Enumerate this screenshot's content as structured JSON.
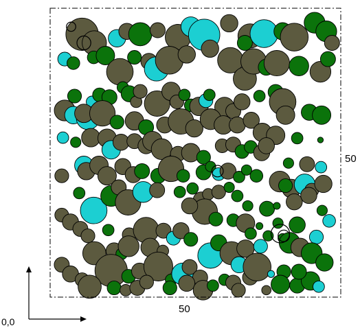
{
  "labels": {
    "width": "50",
    "height": "50",
    "origin": "0,0"
  },
  "colors": {
    "brown": "#5c5a3f",
    "cyan": "#1ccfd2",
    "green": "#0b730b",
    "outline": "#000000",
    "frame": "#000000"
  },
  "domain": {
    "width": 50,
    "height": 50
  },
  "circles": [
    {
      "x": 5.5,
      "y": 45.5,
      "r": 2.8,
      "c": "brown"
    },
    {
      "x": 7.6,
      "y": 44.0,
      "r": 2.1,
      "c": "brown"
    },
    {
      "x": 11.5,
      "y": 44.8,
      "r": 1.5,
      "c": "cyan"
    },
    {
      "x": 13.2,
      "y": 46.0,
      "r": 1.4,
      "c": "brown"
    },
    {
      "x": 15.5,
      "y": 45.5,
      "r": 2.0,
      "c": "green"
    },
    {
      "x": 18.5,
      "y": 46.2,
      "r": 1.3,
      "c": "brown"
    },
    {
      "x": 22.0,
      "y": 45.0,
      "r": 2.2,
      "c": "brown"
    },
    {
      "x": 24.2,
      "y": 46.8,
      "r": 1.7,
      "c": "cyan"
    },
    {
      "x": 26.5,
      "y": 45.4,
      "r": 2.7,
      "c": "cyan"
    },
    {
      "x": 30.8,
      "y": 47.4,
      "r": 1.5,
      "c": "brown"
    },
    {
      "x": 34.4,
      "y": 45.2,
      "r": 2.1,
      "c": "brown"
    },
    {
      "x": 33.5,
      "y": 44.0,
      "r": 1.3,
      "c": "green"
    },
    {
      "x": 36.8,
      "y": 45.6,
      "r": 2.4,
      "c": "cyan"
    },
    {
      "x": 40.0,
      "y": 46.0,
      "r": 1.5,
      "c": "green"
    },
    {
      "x": 42.0,
      "y": 45.0,
      "r": 2.4,
      "c": "brown"
    },
    {
      "x": 45.5,
      "y": 47.5,
      "r": 1.8,
      "c": "green"
    },
    {
      "x": 47.5,
      "y": 46.0,
      "r": 1.8,
      "c": "green"
    },
    {
      "x": 48.5,
      "y": 44.0,
      "r": 1.3,
      "c": "brown"
    },
    {
      "x": 2.5,
      "y": 41.2,
      "r": 1.2,
      "c": "cyan"
    },
    {
      "x": 4.0,
      "y": 40.5,
      "r": 1.1,
      "c": "green"
    },
    {
      "x": 7.5,
      "y": 41.5,
      "r": 1.1,
      "c": "green"
    },
    {
      "x": 9.5,
      "y": 41.8,
      "r": 1.6,
      "c": "green"
    },
    {
      "x": 12.0,
      "y": 39.0,
      "r": 2.3,
      "c": "brown"
    },
    {
      "x": 14.5,
      "y": 41.5,
      "r": 1.2,
      "c": "green"
    },
    {
      "x": 17.0,
      "y": 40.8,
      "r": 1.4,
      "c": "brown"
    },
    {
      "x": 18.3,
      "y": 39.5,
      "r": 2.1,
      "c": "cyan"
    },
    {
      "x": 20.5,
      "y": 41.0,
      "r": 2.4,
      "c": "brown"
    },
    {
      "x": 23.5,
      "y": 42.0,
      "r": 1.5,
      "c": "brown"
    },
    {
      "x": 27.5,
      "y": 43.0,
      "r": 1.5,
      "c": "brown"
    },
    {
      "x": 31.0,
      "y": 41.0,
      "r": 2.2,
      "c": "brown"
    },
    {
      "x": 33.5,
      "y": 37.8,
      "r": 2.0,
      "c": "brown"
    },
    {
      "x": 35.0,
      "y": 40.8,
      "r": 2.2,
      "c": "brown"
    },
    {
      "x": 37.2,
      "y": 39.8,
      "r": 1.4,
      "c": "green"
    },
    {
      "x": 39.0,
      "y": 40.5,
      "r": 2.2,
      "c": "brown"
    },
    {
      "x": 42.8,
      "y": 40.0,
      "r": 1.7,
      "c": "green"
    },
    {
      "x": 46.5,
      "y": 39.0,
      "r": 1.8,
      "c": "brown"
    },
    {
      "x": 47.8,
      "y": 41.2,
      "r": 1.3,
      "c": "green"
    },
    {
      "x": 4.2,
      "y": 34.8,
      "r": 1.2,
      "c": "green"
    },
    {
      "x": 7.2,
      "y": 33.8,
      "r": 1.0,
      "c": "cyan"
    },
    {
      "x": 8.5,
      "y": 35.0,
      "r": 1.2,
      "c": "green"
    },
    {
      "x": 10.2,
      "y": 34.6,
      "r": 1.3,
      "c": "green"
    },
    {
      "x": 12.5,
      "y": 36.3,
      "r": 1.0,
      "c": "green"
    },
    {
      "x": 13.6,
      "y": 35.2,
      "r": 1.4,
      "c": "green"
    },
    {
      "x": 14.8,
      "y": 33.8,
      "r": 1.0,
      "c": "brown"
    },
    {
      "x": 15.5,
      "y": 35.6,
      "r": 1.2,
      "c": "brown"
    },
    {
      "x": 18.4,
      "y": 33.5,
      "r": 2.2,
      "c": "brown"
    },
    {
      "x": 20.8,
      "y": 35.6,
      "r": 1.6,
      "c": "brown"
    },
    {
      "x": 21.8,
      "y": 33.8,
      "r": 1.2,
      "c": "brown"
    },
    {
      "x": 23.1,
      "y": 35.0,
      "r": 1.0,
      "c": "green"
    },
    {
      "x": 24.2,
      "y": 33.2,
      "r": 1.1,
      "c": "green"
    },
    {
      "x": 25.6,
      "y": 33.0,
      "r": 1.6,
      "c": "brown"
    },
    {
      "x": 26.8,
      "y": 34.0,
      "r": 1.2,
      "c": "cyan"
    },
    {
      "x": 27.4,
      "y": 35.0,
      "r": 1.0,
      "c": "green"
    },
    {
      "x": 30.0,
      "y": 32.9,
      "r": 1.7,
      "c": "brown"
    },
    {
      "x": 31.5,
      "y": 32.2,
      "r": 1.3,
      "c": "brown"
    },
    {
      "x": 33.0,
      "y": 33.8,
      "r": 1.4,
      "c": "brown"
    },
    {
      "x": 36.0,
      "y": 34.8,
      "r": 1.0,
      "c": "green"
    },
    {
      "x": 38.8,
      "y": 35.5,
      "r": 1.3,
      "c": "green"
    },
    {
      "x": 40.0,
      "y": 33.8,
      "r": 2.3,
      "c": "brown"
    },
    {
      "x": 40.5,
      "y": 31.5,
      "r": 1.6,
      "c": "brown"
    },
    {
      "x": 44.6,
      "y": 32.0,
      "r": 1.4,
      "c": "green"
    },
    {
      "x": 46.7,
      "y": 31.5,
      "r": 1.6,
      "c": "green"
    },
    {
      "x": 2.5,
      "y": 32.3,
      "r": 1.8,
      "c": "brown"
    },
    {
      "x": 4.0,
      "y": 31.5,
      "r": 1.5,
      "c": "cyan"
    },
    {
      "x": 6.5,
      "y": 31.0,
      "r": 2.0,
      "c": "cyan"
    },
    {
      "x": 5.8,
      "y": 31.8,
      "r": 1.6,
      "c": "brown"
    },
    {
      "x": 9.0,
      "y": 31.8,
      "r": 2.2,
      "c": "brown"
    },
    {
      "x": 11.5,
      "y": 30.3,
      "r": 1.2,
      "c": "green"
    },
    {
      "x": 14.5,
      "y": 30.5,
      "r": 1.6,
      "c": "brown"
    },
    {
      "x": 16.5,
      "y": 29.4,
      "r": 1.3,
      "c": "green"
    },
    {
      "x": 19.7,
      "y": 29.8,
      "r": 1.4,
      "c": "brown"
    },
    {
      "x": 22.5,
      "y": 30.4,
      "r": 2.2,
      "c": "brown"
    },
    {
      "x": 24.8,
      "y": 29.2,
      "r": 1.5,
      "c": "brown"
    },
    {
      "x": 27.6,
      "y": 30.8,
      "r": 1.8,
      "c": "brown"
    },
    {
      "x": 29.8,
      "y": 29.8,
      "r": 1.6,
      "c": "brown"
    },
    {
      "x": 32.2,
      "y": 29.8,
      "r": 1.4,
      "c": "brown"
    },
    {
      "x": 34.6,
      "y": 30.6,
      "r": 1.4,
      "c": "brown"
    },
    {
      "x": 36.5,
      "y": 28.5,
      "r": 1.6,
      "c": "brown"
    },
    {
      "x": 38.8,
      "y": 28.0,
      "r": 1.6,
      "c": "brown"
    },
    {
      "x": 42.5,
      "y": 27.5,
      "r": 1.0,
      "c": "green"
    },
    {
      "x": 46.5,
      "y": 27.2,
      "r": 0.5,
      "c": "green"
    },
    {
      "x": 2.2,
      "y": 27.6,
      "r": 1.0,
      "c": "cyan"
    },
    {
      "x": 4.4,
      "y": 26.8,
      "r": 0.9,
      "c": "green"
    },
    {
      "x": 7.0,
      "y": 27.6,
      "r": 1.6,
      "c": "brown"
    },
    {
      "x": 9.8,
      "y": 27.5,
      "r": 1.6,
      "c": "brown"
    },
    {
      "x": 10.5,
      "y": 25.5,
      "r": 1.6,
      "c": "cyan"
    },
    {
      "x": 12.2,
      "y": 26.8,
      "r": 1.4,
      "c": "brown"
    },
    {
      "x": 14.5,
      "y": 27.0,
      "r": 1.3,
      "c": "brown"
    },
    {
      "x": 16.5,
      "y": 26.2,
      "r": 1.4,
      "c": "brown"
    },
    {
      "x": 17.6,
      "y": 27.0,
      "r": 1.7,
      "c": "brown"
    },
    {
      "x": 19.2,
      "y": 25.6,
      "r": 1.8,
      "c": "brown"
    },
    {
      "x": 22.0,
      "y": 24.8,
      "r": 1.3,
      "c": "brown"
    },
    {
      "x": 24.2,
      "y": 25.0,
      "r": 1.6,
      "c": "brown"
    },
    {
      "x": 26.4,
      "y": 24.2,
      "r": 1.2,
      "c": "green"
    },
    {
      "x": 29.6,
      "y": 26.2,
      "r": 1.2,
      "c": "brown"
    },
    {
      "x": 31.5,
      "y": 26.4,
      "r": 1.3,
      "c": "brown"
    },
    {
      "x": 33.0,
      "y": 25.2,
      "r": 1.2,
      "c": "green"
    },
    {
      "x": 34.5,
      "y": 26.0,
      "r": 1.1,
      "c": "green"
    },
    {
      "x": 36.4,
      "y": 25.0,
      "r": 1.4,
      "c": "brown"
    },
    {
      "x": 37.2,
      "y": 26.2,
      "r": 1.4,
      "c": "brown"
    },
    {
      "x": 41.0,
      "y": 23.2,
      "r": 0.9,
      "c": "green"
    },
    {
      "x": 44.2,
      "y": 23.0,
      "r": 1.3,
      "c": "brown"
    },
    {
      "x": 46.6,
      "y": 22.5,
      "r": 1.0,
      "c": "cyan"
    },
    {
      "x": 2.0,
      "y": 21.0,
      "r": 1.2,
      "c": "brown"
    },
    {
      "x": 5.8,
      "y": 22.8,
      "r": 1.6,
      "c": "cyan"
    },
    {
      "x": 6.2,
      "y": 21.8,
      "r": 1.5,
      "c": "brown"
    },
    {
      "x": 8.4,
      "y": 22.8,
      "r": 1.6,
      "c": "brown"
    },
    {
      "x": 9.8,
      "y": 21.0,
      "r": 1.6,
      "c": "brown"
    },
    {
      "x": 12.5,
      "y": 22.6,
      "r": 1.4,
      "c": "brown"
    },
    {
      "x": 14.3,
      "y": 21.2,
      "r": 1.4,
      "c": "brown"
    },
    {
      "x": 15.8,
      "y": 21.8,
      "r": 1.3,
      "c": "green"
    },
    {
      "x": 18.6,
      "y": 21.0,
      "r": 1.3,
      "c": "green"
    },
    {
      "x": 20.8,
      "y": 22.2,
      "r": 2.2,
      "c": "brown"
    },
    {
      "x": 22.9,
      "y": 21.0,
      "r": 1.1,
      "c": "green"
    },
    {
      "x": 26.4,
      "y": 21.6,
      "r": 1.3,
      "c": "green"
    },
    {
      "x": 27.6,
      "y": 22.6,
      "r": 0.9,
      "c": "green"
    },
    {
      "x": 29.0,
      "y": 21.3,
      "r": 1.1,
      "c": "cyan"
    },
    {
      "x": 30.6,
      "y": 21.8,
      "r": 1.4,
      "c": "brown"
    },
    {
      "x": 32.5,
      "y": 20.8,
      "r": 1.0,
      "c": "green"
    },
    {
      "x": 33.8,
      "y": 22.0,
      "r": 0.9,
      "c": "green"
    },
    {
      "x": 35.5,
      "y": 21.0,
      "r": 1.1,
      "c": "green"
    },
    {
      "x": 39.5,
      "y": 20.0,
      "r": 1.8,
      "c": "brown"
    },
    {
      "x": 41.5,
      "y": 18.8,
      "r": 1.6,
      "c": "brown"
    },
    {
      "x": 43.8,
      "y": 19.5,
      "r": 1.8,
      "c": "cyan"
    },
    {
      "x": 45.0,
      "y": 18.5,
      "r": 1.2,
      "c": "brown"
    },
    {
      "x": 47.0,
      "y": 19.6,
      "r": 1.5,
      "c": "brown"
    },
    {
      "x": 40.5,
      "y": 19.3,
      "r": 1.2,
      "c": "green"
    },
    {
      "x": 5.0,
      "y": 18.0,
      "r": 1.0,
      "c": "green"
    },
    {
      "x": 7.5,
      "y": 15.0,
      "r": 2.3,
      "c": "cyan"
    },
    {
      "x": 10.5,
      "y": 17.5,
      "r": 1.8,
      "c": "green"
    },
    {
      "x": 11.8,
      "y": 19.0,
      "r": 1.3,
      "c": "brown"
    },
    {
      "x": 13.4,
      "y": 16.4,
      "r": 2.2,
      "c": "brown"
    },
    {
      "x": 16.0,
      "y": 18.2,
      "r": 1.8,
      "c": "cyan"
    },
    {
      "x": 18.4,
      "y": 18.5,
      "r": 1.3,
      "c": "brown"
    },
    {
      "x": 22.3,
      "y": 18.2,
      "r": 1.0,
      "c": "green"
    },
    {
      "x": 24.5,
      "y": 18.8,
      "r": 1.0,
      "c": "green"
    },
    {
      "x": 26.0,
      "y": 16.8,
      "r": 1.4,
      "c": "brown"
    },
    {
      "x": 27.2,
      "y": 17.8,
      "r": 1.0,
      "c": "brown"
    },
    {
      "x": 29.0,
      "y": 18.2,
      "r": 1.2,
      "c": "brown"
    },
    {
      "x": 30.8,
      "y": 19.0,
      "r": 0.9,
      "c": "green"
    },
    {
      "x": 32.2,
      "y": 17.5,
      "r": 1.0,
      "c": "green"
    },
    {
      "x": 34.0,
      "y": 15.8,
      "r": 0.9,
      "c": "green"
    },
    {
      "x": 37.3,
      "y": 15.3,
      "r": 1.3,
      "c": "green"
    },
    {
      "x": 39.0,
      "y": 15.8,
      "r": 0.6,
      "c": "green"
    },
    {
      "x": 42.0,
      "y": 16.5,
      "r": 1.4,
      "c": "brown"
    },
    {
      "x": 44.5,
      "y": 17.6,
      "r": 1.4,
      "c": "brown"
    },
    {
      "x": 46.8,
      "y": 15.0,
      "r": 0.9,
      "c": "green"
    },
    {
      "x": 48.0,
      "y": 13.2,
      "r": 1.1,
      "c": "cyan"
    },
    {
      "x": 2.0,
      "y": 14.2,
      "r": 1.2,
      "c": "brown"
    },
    {
      "x": 3.5,
      "y": 13.0,
      "r": 1.4,
      "c": "brown"
    },
    {
      "x": 5.2,
      "y": 11.8,
      "r": 1.3,
      "c": "brown"
    },
    {
      "x": 6.5,
      "y": 10.6,
      "r": 1.2,
      "c": "brown"
    },
    {
      "x": 10.0,
      "y": 11.6,
      "r": 1.0,
      "c": "green"
    },
    {
      "x": 13.6,
      "y": 10.8,
      "r": 1.2,
      "c": "brown"
    },
    {
      "x": 16.5,
      "y": 11.6,
      "r": 2.2,
      "c": "brown"
    },
    {
      "x": 19.5,
      "y": 11.5,
      "r": 1.3,
      "c": "brown"
    },
    {
      "x": 21.2,
      "y": 10.2,
      "r": 1.2,
      "c": "cyan"
    },
    {
      "x": 22.5,
      "y": 11.5,
      "r": 1.4,
      "c": "brown"
    },
    {
      "x": 24.2,
      "y": 10.0,
      "r": 1.2,
      "c": "green"
    },
    {
      "x": 26.6,
      "y": 14.8,
      "r": 2.2,
      "c": "brown"
    },
    {
      "x": 24.0,
      "y": 15.8,
      "r": 1.4,
      "c": "brown"
    },
    {
      "x": 28.5,
      "y": 13.5,
      "r": 1.2,
      "c": "green"
    },
    {
      "x": 31.5,
      "y": 13.3,
      "r": 1.1,
      "c": "green"
    },
    {
      "x": 33.6,
      "y": 12.8,
      "r": 1.6,
      "c": "brown"
    },
    {
      "x": 36.0,
      "y": 12.3,
      "r": 0.6,
      "c": "green"
    },
    {
      "x": 39.2,
      "y": 12.8,
      "r": 0.9,
      "c": "green"
    },
    {
      "x": 40.0,
      "y": 10.2,
      "r": 0.8,
      "c": "green"
    },
    {
      "x": 42.5,
      "y": 12.5,
      "r": 1.4,
      "c": "green"
    },
    {
      "x": 45.8,
      "y": 10.4,
      "r": 1.2,
      "c": "cyan"
    },
    {
      "x": 7.6,
      "y": 7.6,
      "r": 2.0,
      "c": "brown"
    },
    {
      "x": 11.0,
      "y": 8.0,
      "r": 1.4,
      "c": "brown"
    },
    {
      "x": 12.3,
      "y": 7.5,
      "r": 1.0,
      "c": "green"
    },
    {
      "x": 13.5,
      "y": 8.8,
      "r": 1.8,
      "c": "brown"
    },
    {
      "x": 17.2,
      "y": 8.6,
      "r": 1.6,
      "c": "brown"
    },
    {
      "x": 19.4,
      "y": 8.0,
      "r": 1.0,
      "c": "brown"
    },
    {
      "x": 27.6,
      "y": 7.2,
      "r": 2.2,
      "c": "cyan"
    },
    {
      "x": 29.0,
      "y": 9.4,
      "r": 1.4,
      "c": "green"
    },
    {
      "x": 31.2,
      "y": 7.6,
      "r": 2.0,
      "c": "brown"
    },
    {
      "x": 33.6,
      "y": 8.4,
      "r": 1.5,
      "c": "brown"
    },
    {
      "x": 34.5,
      "y": 11.0,
      "r": 1.0,
      "c": "green"
    },
    {
      "x": 36.2,
      "y": 8.8,
      "r": 1.2,
      "c": "cyan"
    },
    {
      "x": 37.5,
      "y": 10.6,
      "r": 0.9,
      "c": "green"
    },
    {
      "x": 41.2,
      "y": 9.4,
      "r": 1.8,
      "c": "green"
    },
    {
      "x": 43.0,
      "y": 8.6,
      "r": 1.6,
      "c": "brown"
    },
    {
      "x": 45.0,
      "y": 7.6,
      "r": 1.8,
      "c": "green"
    },
    {
      "x": 47.2,
      "y": 6.0,
      "r": 1.5,
      "c": "green"
    },
    {
      "x": 10.5,
      "y": 4.6,
      "r": 2.8,
      "c": "brown"
    },
    {
      "x": 13.5,
      "y": 3.6,
      "r": 1.2,
      "c": "green"
    },
    {
      "x": 15.4,
      "y": 4.5,
      "r": 1.4,
      "c": "brown"
    },
    {
      "x": 18.6,
      "y": 5.3,
      "r": 2.5,
      "c": "brown"
    },
    {
      "x": 20.8,
      "y": 3.0,
      "r": 1.0,
      "c": "green"
    },
    {
      "x": 22.8,
      "y": 4.0,
      "r": 1.9,
      "c": "cyan"
    },
    {
      "x": 24.0,
      "y": 5.2,
      "r": 1.3,
      "c": "brown"
    },
    {
      "x": 25.8,
      "y": 3.4,
      "r": 1.3,
      "c": "brown"
    },
    {
      "x": 32.5,
      "y": 5.6,
      "r": 1.4,
      "c": "cyan"
    },
    {
      "x": 34.4,
      "y": 3.4,
      "r": 1.3,
      "c": "brown"
    },
    {
      "x": 35.6,
      "y": 5.2,
      "r": 2.4,
      "c": "brown"
    },
    {
      "x": 38.0,
      "y": 4.0,
      "r": 0.6,
      "c": "cyan"
    },
    {
      "x": 40.2,
      "y": 4.4,
      "r": 1.2,
      "c": "green"
    },
    {
      "x": 42.5,
      "y": 2.0,
      "r": 1.3,
      "c": "green"
    },
    {
      "x": 44.8,
      "y": 2.8,
      "r": 1.6,
      "c": "green"
    },
    {
      "x": 46.2,
      "y": 1.8,
      "r": 1.0,
      "c": "cyan"
    },
    {
      "x": 2.0,
      "y": 5.6,
      "r": 1.3,
      "c": "brown"
    },
    {
      "x": 3.5,
      "y": 4.0,
      "r": 1.4,
      "c": "brown"
    },
    {
      "x": 5.5,
      "y": 3.0,
      "r": 1.2,
      "c": "brown"
    },
    {
      "x": 6.8,
      "y": 1.8,
      "r": 2.0,
      "c": "brown"
    },
    {
      "x": 11.0,
      "y": 1.6,
      "r": 1.2,
      "c": "green"
    },
    {
      "x": 13.0,
      "y": 1.2,
      "r": 1.0,
      "c": "brown"
    },
    {
      "x": 15.0,
      "y": 1.6,
      "r": 1.3,
      "c": "brown"
    },
    {
      "x": 16.6,
      "y": 2.6,
      "r": 1.2,
      "c": "brown"
    },
    {
      "x": 20.6,
      "y": 1.6,
      "r": 1.2,
      "c": "green"
    },
    {
      "x": 23.5,
      "y": 2.4,
      "r": 1.4,
      "c": "brown"
    },
    {
      "x": 26.3,
      "y": 1.2,
      "r": 1.7,
      "c": "brown"
    },
    {
      "x": 28.0,
      "y": 2.0,
      "r": 1.0,
      "c": "green"
    },
    {
      "x": 30.0,
      "y": 3.0,
      "r": 1.0,
      "c": "green"
    },
    {
      "x": 31.5,
      "y": 2.5,
      "r": 1.3,
      "c": "brown"
    },
    {
      "x": 32.4,
      "y": 1.2,
      "r": 1.2,
      "c": "brown"
    },
    {
      "x": 37.2,
      "y": 1.2,
      "r": 0.8,
      "c": "brown"
    },
    {
      "x": 39.6,
      "y": 2.2,
      "r": 1.6,
      "c": "green"
    },
    {
      "x": 42.8,
      "y": 4.4,
      "r": 1.3,
      "c": "green"
    }
  ],
  "rings": [
    {
      "x": 3.6,
      "y": 46.8,
      "r": 0.8
    },
    {
      "x": 5.8,
      "y": 44.0,
      "r": 1.2
    },
    {
      "x": 28.8,
      "y": 21.8,
      "r": 1.0
    },
    {
      "x": 39.6,
      "y": 11.0,
      "r": 1.6
    },
    {
      "x": 40.2,
      "y": 10.6,
      "r": 1.0
    }
  ]
}
